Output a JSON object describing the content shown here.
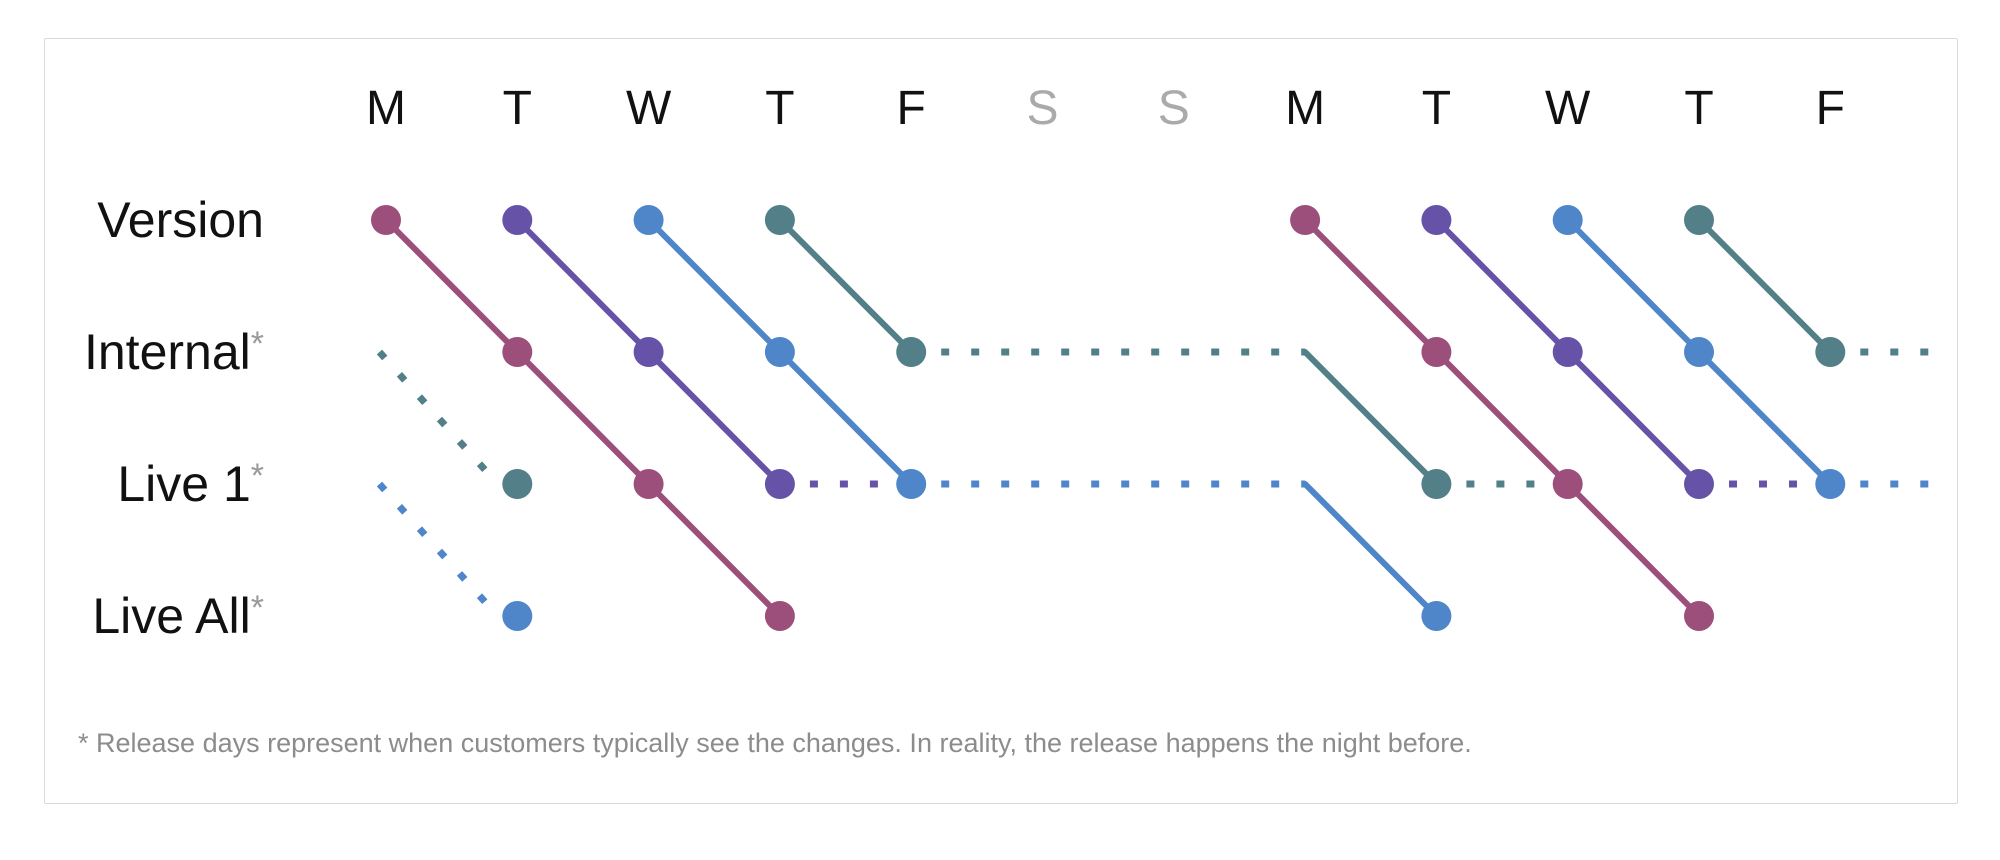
{
  "colors": {
    "magenta": "#9b4f7a",
    "purple": "#6653a8",
    "blue": "#4f86c9",
    "teal": "#527f88",
    "weekday": "#111111",
    "weekend": "#aaaaaa",
    "asterisk": "#999999",
    "footnote": "#8c8c8c"
  },
  "days": [
    {
      "label": "M",
      "weekend": false
    },
    {
      "label": "T",
      "weekend": false
    },
    {
      "label": "W",
      "weekend": false
    },
    {
      "label": "T",
      "weekend": false
    },
    {
      "label": "F",
      "weekend": false
    },
    {
      "label": "S",
      "weekend": true
    },
    {
      "label": "S",
      "weekend": true
    },
    {
      "label": "M",
      "weekend": false
    },
    {
      "label": "T",
      "weekend": false
    },
    {
      "label": "W",
      "weekend": false
    },
    {
      "label": "T",
      "weekend": false
    },
    {
      "label": "F",
      "weekend": false
    }
  ],
  "rows": [
    {
      "label": "Version",
      "asterisk": ""
    },
    {
      "label": "Internal",
      "asterisk": "*"
    },
    {
      "label": "Live 1",
      "asterisk": "*"
    },
    {
      "label": "Live All",
      "asterisk": "*"
    }
  ],
  "footnote": "* Release days represent when customers typically see the changes. In reality, the release happens the night before.",
  "releases": [
    {
      "color": "magenta",
      "path": [
        [
          0,
          0
        ],
        [
          1,
          1
        ],
        [
          2,
          2
        ],
        [
          3,
          3
        ]
      ]
    },
    {
      "color": "purple",
      "path": [
        [
          1,
          0
        ],
        [
          2,
          1
        ],
        [
          3,
          2
        ]
      ]
    },
    {
      "color": "blue",
      "path": [
        [
          2,
          0
        ],
        [
          3,
          1
        ],
        [
          4,
          2
        ]
      ]
    },
    {
      "color": "teal",
      "path": [
        [
          3,
          0
        ],
        [
          4,
          1
        ]
      ]
    },
    {
      "color": "magenta",
      "path": [
        [
          7,
          0
        ],
        [
          8,
          1
        ],
        [
          9,
          2
        ],
        [
          10,
          3
        ]
      ]
    },
    {
      "color": "purple",
      "path": [
        [
          8,
          0
        ],
        [
          9,
          1
        ],
        [
          10,
          2
        ]
      ]
    },
    {
      "color": "blue",
      "path": [
        [
          9,
          0
        ],
        [
          10,
          1
        ],
        [
          11,
          2
        ]
      ]
    },
    {
      "color": "teal",
      "path": [
        [
          10,
          0
        ],
        [
          11,
          1
        ]
      ]
    }
  ],
  "lone_dots": [
    {
      "color": "teal",
      "at": [
        1,
        2
      ]
    },
    {
      "color": "blue",
      "at": [
        1,
        3
      ]
    },
    {
      "color": "teal",
      "at": [
        8,
        2
      ]
    },
    {
      "color": "blue",
      "at": [
        8,
        3
      ]
    }
  ],
  "waits": [
    {
      "color": "teal",
      "from": [
        -0.05,
        1
      ],
      "to": [
        0.85,
        2
      ]
    },
    {
      "color": "blue",
      "from": [
        -0.05,
        2
      ],
      "to": [
        0.85,
        3
      ]
    },
    {
      "color": "teal",
      "from": [
        4,
        1
      ],
      "to": [
        7,
        1
      ]
    },
    {
      "color": "blue",
      "from": [
        4,
        2
      ],
      "to": [
        7,
        2
      ]
    },
    {
      "color": "purple",
      "from": [
        3,
        2
      ],
      "to": [
        4,
        2
      ]
    },
    {
      "color": "teal",
      "from": [
        8,
        2
      ],
      "to": [
        9,
        2
      ]
    },
    {
      "color": "purple",
      "from": [
        10,
        2
      ],
      "to": [
        11,
        2
      ]
    },
    {
      "color": "teal",
      "from": [
        11,
        1
      ],
      "to": [
        11.8,
        1
      ]
    },
    {
      "color": "blue",
      "from": [
        11,
        2
      ],
      "to": [
        11.8,
        2
      ]
    }
  ],
  "handoffs": [
    {
      "color": "teal",
      "from": [
        7,
        1
      ],
      "to": [
        8,
        2
      ]
    },
    {
      "color": "blue",
      "from": [
        7,
        2
      ],
      "to": [
        8,
        3
      ]
    }
  ]
}
